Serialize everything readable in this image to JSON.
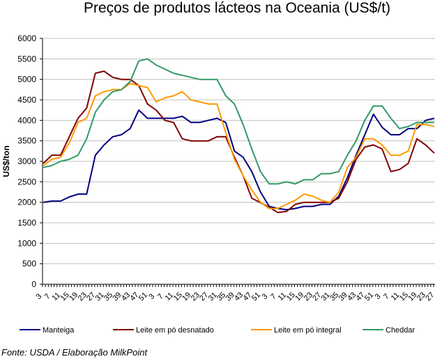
{
  "chart_data": {
    "type": "line",
    "title": "Preços de produtos lácteos na Oceania (US$/t)",
    "xlabel": "",
    "ylabel": "US$/ton",
    "ylim": [
      0,
      6000
    ],
    "yticks": [
      "0",
      "500",
      "1000",
      "1500",
      "2000",
      "2500",
      "3000",
      "3500",
      "4000",
      "4500",
      "5000",
      "5500",
      "6000"
    ],
    "grid": true,
    "legend_position": "bottom",
    "categories": [
      "3",
      "7",
      "11",
      "15",
      "19",
      "23",
      "27",
      "31",
      "35",
      "39",
      "43",
      "47",
      "51",
      "3",
      "7",
      "11",
      "15",
      "19",
      "23",
      "27",
      "31",
      "35",
      "39",
      "43",
      "47",
      "51",
      "3",
      "7",
      "11",
      "15",
      "19",
      "23",
      "27",
      "31",
      "35",
      "39",
      "43",
      "47",
      "51",
      "3",
      "7",
      "11",
      "15",
      "19",
      "23",
      "27"
    ],
    "series": [
      {
        "name": "Manteiga",
        "color": "#000080",
        "values": [
          2000,
          2030,
          2030,
          2130,
          2200,
          2200,
          3150,
          3400,
          3600,
          3650,
          3800,
          4250,
          4050,
          4050,
          4050,
          4050,
          4100,
          3950,
          3950,
          4000,
          4050,
          3950,
          3250,
          3100,
          2750,
          2250,
          1900,
          1850,
          1820,
          1850,
          1900,
          1900,
          1950,
          1950,
          2150,
          2600,
          3150,
          3650,
          4150,
          3830,
          3650,
          3650,
          3800,
          3800,
          4000,
          4050
        ]
      },
      {
        "name": "Leite em pó desnatado",
        "color": "#800000",
        "values": [
          2950,
          3150,
          3150,
          3600,
          4050,
          4300,
          5150,
          5200,
          5050,
          5000,
          5000,
          4850,
          4400,
          4250,
          4000,
          3950,
          3550,
          3500,
          3500,
          3500,
          3600,
          3600,
          3100,
          2650,
          2100,
          1990,
          1880,
          1750,
          1780,
          1950,
          2000,
          2000,
          2000,
          2000,
          2100,
          2500,
          3050,
          3350,
          3400,
          3300,
          2750,
          2800,
          2950,
          3550,
          3400,
          3200
        ]
      },
      {
        "name": "Leite em pó integral",
        "color": "#FF9900",
        "values": [
          2900,
          3050,
          3100,
          3450,
          3950,
          4050,
          4600,
          4700,
          4750,
          4750,
          4900,
          4850,
          4800,
          4450,
          4550,
          4600,
          4700,
          4500,
          4450,
          4400,
          4400,
          3700,
          3050,
          2650,
          2300,
          2000,
          1850,
          1850,
          1950,
          2050,
          2200,
          2150,
          2050,
          2000,
          2250,
          2850,
          3100,
          3550,
          3550,
          3400,
          3150,
          3150,
          3250,
          3900,
          3900,
          3850
        ]
      },
      {
        "name": "Cheddar",
        "color": "#339966",
        "values": [
          2850,
          2900,
          3000,
          3050,
          3150,
          3550,
          4200,
          4500,
          4700,
          4750,
          4950,
          5450,
          5500,
          5350,
          5250,
          5150,
          5100,
          5050,
          5000,
          5000,
          5000,
          4600,
          4400,
          3900,
          3300,
          2750,
          2450,
          2450,
          2500,
          2450,
          2550,
          2550,
          2700,
          2700,
          2750,
          3150,
          3500,
          4000,
          4350,
          4350,
          4050,
          3800,
          3850,
          3950,
          3950,
          3950
        ]
      }
    ]
  },
  "source": "Fonte: USDA / Elaboração MilkPoint"
}
